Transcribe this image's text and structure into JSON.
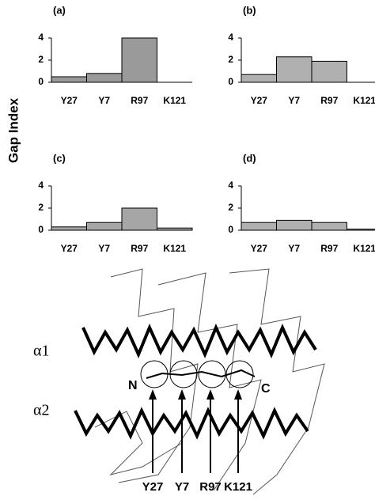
{
  "y_label": "Gap Index",
  "chart_data": [
    {
      "type": "bar",
      "title": "(a)",
      "categories": [
        "Y27",
        "Y7",
        "R97",
        "K121"
      ],
      "values": [
        0.5,
        0.8,
        4,
        0
      ],
      "color": "#9a9a9a",
      "ylim": [
        0,
        4
      ],
      "yticks": [
        0,
        2,
        4
      ]
    },
    {
      "type": "bar",
      "title": "(b)",
      "categories": [
        "Y27",
        "Y7",
        "R97",
        "K121"
      ],
      "values": [
        0.7,
        2.3,
        1.9,
        0
      ],
      "color": "#b0b0b0",
      "ylim": [
        0,
        4
      ],
      "yticks": [
        0,
        2,
        4
      ]
    },
    {
      "type": "bar",
      "title": "(c)",
      "categories": [
        "Y27",
        "Y7",
        "R97",
        "K121"
      ],
      "values": [
        0.3,
        0.7,
        2.0,
        0.2
      ],
      "color": "#a6a6a6",
      "ylim": [
        0,
        4
      ],
      "yticks": [
        0,
        2,
        4
      ]
    },
    {
      "type": "bar",
      "title": "(d)",
      "categories": [
        "Y27",
        "Y7",
        "R97",
        "K121"
      ],
      "values": [
        0.7,
        0.9,
        0.7,
        0.1
      ],
      "color": "#b0b0b0",
      "ylim": [
        0,
        4
      ],
      "yticks": [
        0,
        2,
        4
      ]
    }
  ],
  "diagram": {
    "helix1": "α1",
    "helix2": "α2",
    "n_term": "N",
    "c_term": "C",
    "residues": [
      "Y27",
      "Y7",
      "R97",
      "K121"
    ]
  }
}
